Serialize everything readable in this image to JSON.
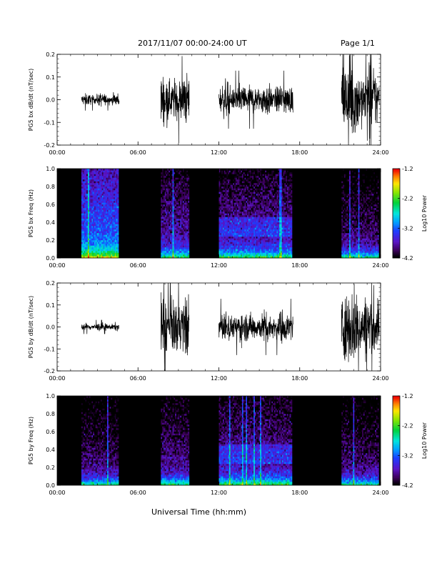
{
  "header": {
    "title": "2017/11/07  00:00-24:00 UT",
    "page": "Page 1/1"
  },
  "footer": {
    "xlabel": "Universal Time (hh:mm)"
  },
  "colors": {
    "background": "#ffffff",
    "trace": "#000000",
    "spec_background": "#000000"
  },
  "chart_data": [
    {
      "type": "line",
      "panel": "bx-waveform",
      "title": "",
      "ylabel": "PG5 bx dB/dt (nT/sec)",
      "xlabel": "",
      "x_unit": "hours UT",
      "xlim": [
        0,
        24
      ],
      "ylim": [
        -0.2,
        0.2
      ],
      "xticks": [
        "00:00",
        "06:00",
        "12:00",
        "18:00",
        "24:00"
      ],
      "yticks": [
        "-0.2",
        "-0.1",
        "0.0",
        "0.1",
        "0.2"
      ],
      "data_intervals": [
        {
          "start": 1.8,
          "end": 4.6,
          "amplitude": 0.03
        },
        {
          "start": 7.7,
          "end": 9.8,
          "amplitude": 0.12
        },
        {
          "start": 12.0,
          "end": 17.5,
          "amplitude": 0.08
        },
        {
          "start": 21.1,
          "end": 23.9,
          "amplitude": 0.2
        }
      ]
    },
    {
      "type": "heatmap",
      "panel": "bx-spectrogram",
      "title": "",
      "ylabel": "PG5 bx Freq (Hz)",
      "xlabel": "",
      "x_unit": "hours UT",
      "xlim": [
        0,
        24
      ],
      "ylim": [
        0.0,
        1.0
      ],
      "xticks": [
        "00:00",
        "06:00",
        "12:00",
        "18:00",
        "24:00"
      ],
      "yticks": [
        "0.0",
        "0.2",
        "0.4",
        "0.6",
        "0.8",
        "1.0"
      ],
      "colorbar": {
        "label": "Log10 Power",
        "range": [
          -4.2,
          -1.2
        ],
        "ticks": [
          "-1.2",
          "-2.2",
          "-3.2",
          "-4.2"
        ]
      },
      "data_intervals": [
        {
          "start": 1.8,
          "end": 4.6,
          "level": -3.1
        },
        {
          "start": 7.7,
          "end": 9.8,
          "level": -3.6
        },
        {
          "start": 12.0,
          "end": 17.5,
          "level": -3.6
        },
        {
          "start": 21.1,
          "end": 23.9,
          "level": -3.8
        }
      ]
    },
    {
      "type": "line",
      "panel": "by-waveform",
      "title": "",
      "ylabel": "PG5 by dB/dt (nT/sec)",
      "xlabel": "",
      "x_unit": "hours UT",
      "xlim": [
        0,
        24
      ],
      "ylim": [
        -0.2,
        0.2
      ],
      "xticks": [
        "00:00",
        "06:00",
        "12:00",
        "18:00",
        "24:00"
      ],
      "yticks": [
        "-0.2",
        "-0.1",
        "0.0",
        "0.1",
        "0.2"
      ],
      "data_intervals": [
        {
          "start": 1.8,
          "end": 4.6,
          "amplitude": 0.02
        },
        {
          "start": 7.7,
          "end": 9.8,
          "amplitude": 0.15
        },
        {
          "start": 12.0,
          "end": 17.5,
          "amplitude": 0.08
        },
        {
          "start": 21.1,
          "end": 23.9,
          "amplitude": 0.2
        }
      ]
    },
    {
      "type": "heatmap",
      "panel": "by-spectrogram",
      "title": "",
      "ylabel": "PG5 by Freq (Hz)",
      "xlabel": "",
      "x_unit": "hours UT",
      "xlim": [
        0,
        24
      ],
      "ylim": [
        0.0,
        1.0
      ],
      "xticks": [
        "00:00",
        "06:00",
        "12:00",
        "18:00",
        "24:00"
      ],
      "yticks": [
        "0.0",
        "0.2",
        "0.4",
        "0.6",
        "0.8",
        "1.0"
      ],
      "colorbar": {
        "label": "Log10 Power",
        "range": [
          -4.2,
          -1.2
        ],
        "ticks": [
          "-1.2",
          "-2.2",
          "-3.2",
          "-4.2"
        ]
      },
      "data_intervals": [
        {
          "start": 1.8,
          "end": 4.6,
          "level": -3.8
        },
        {
          "start": 7.7,
          "end": 9.8,
          "level": -3.7
        },
        {
          "start": 12.0,
          "end": 17.5,
          "level": -3.6
        },
        {
          "start": 21.1,
          "end": 23.9,
          "level": -3.8
        }
      ]
    }
  ]
}
